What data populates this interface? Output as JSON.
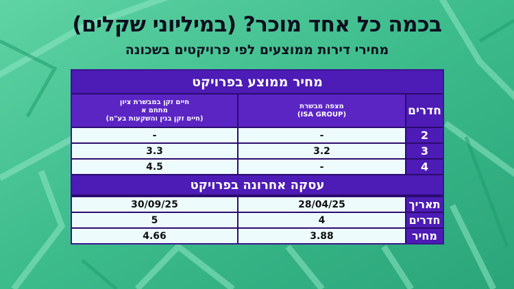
{
  "title": "בכמה כל אחד מוכר? (במיליוני שקלים)",
  "subtitle": "מחירי דירות ממוצעים לפי פרויקטים בשכונה",
  "colors": {
    "background": "#3fbf8f",
    "header_purple": "#4d1bb5",
    "cell_bg": "#eefbfc",
    "text_dark": "#0d0f1e"
  },
  "section_avg": {
    "title": "מחיר ממוצע בפרויקט",
    "rooms_header": "חדרים",
    "col1_header": [
      "מצפה מבשרת",
      "(ISA GROUP)"
    ],
    "col2_header": [
      "חיים זקן במבשרת ציון",
      "מתחם א",
      "(חיים זקן בנין והשקעות בע\"מ)"
    ],
    "rows": [
      {
        "rooms": "2",
        "col1": "-",
        "col2": "-"
      },
      {
        "rooms": "3",
        "col1": "3.2",
        "col2": "3.3"
      },
      {
        "rooms": "4",
        "col1": "-",
        "col2": "4.5"
      }
    ]
  },
  "section_last": {
    "title": "עסקה אחרונה בפרויקט",
    "rows": [
      {
        "label": "תאריך",
        "col1": "28/04/25",
        "col2": "30/09/25"
      },
      {
        "label": "חדרים",
        "col1": "4",
        "col2": "5"
      },
      {
        "label": "מחיר",
        "col1": "3.88",
        "col2": "4.66"
      }
    ]
  }
}
